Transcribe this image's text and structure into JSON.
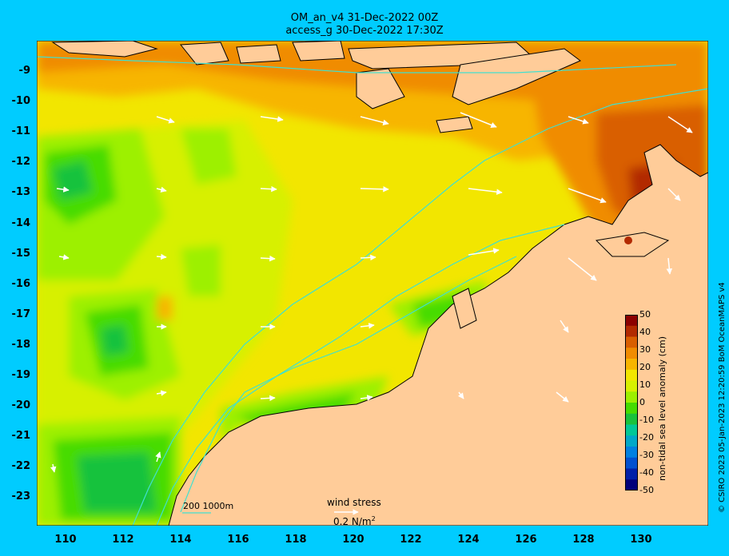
{
  "title": {
    "line1": "OM_an_v4  31-Dec-2022 00Z",
    "line2": "access_g 30-Dec-2022 17:30Z"
  },
  "axes": {
    "lat_labels": [
      "-9",
      "-10",
      "-11",
      "-12",
      "-13",
      "-14",
      "-15",
      "-16",
      "-17",
      "-18",
      "-19",
      "-20",
      "-21",
      "-22",
      "-23"
    ],
    "lon_labels": [
      "110",
      "112",
      "114",
      "116",
      "118",
      "120",
      "122",
      "124",
      "126",
      "128",
      "130"
    ]
  },
  "colorbar": {
    "label": "non-tidal sea level anomaly (cm)",
    "ticks": [
      "50",
      "40",
      "30",
      "20",
      "10",
      "0",
      "-10",
      "-20",
      "-30",
      "-40",
      "-50"
    ],
    "colors": [
      "#8b0000",
      "#b22a00",
      "#d95f00",
      "#f08c00",
      "#f7b500",
      "#f2e600",
      "#d7f000",
      "#9df000",
      "#46dc00",
      "#18c23c",
      "#00c896",
      "#00a8c8",
      "#0080e0",
      "#0050d0",
      "#0020a8",
      "#00007a"
    ]
  },
  "legend": {
    "contour_label": "200  1000m",
    "wind_label": "wind stress",
    "wind_scale": "0.2 N/m",
    "wind_scale_exp": "2"
  },
  "credit": "© CSIRO 2023   05-Jan-2023 12:20:59 BoM OceanMAPS v4",
  "colors": {
    "background": "#00ccff",
    "land": "#ffcc99",
    "contour": "#40e0d0",
    "wind_arrow": "#ffffff"
  }
}
